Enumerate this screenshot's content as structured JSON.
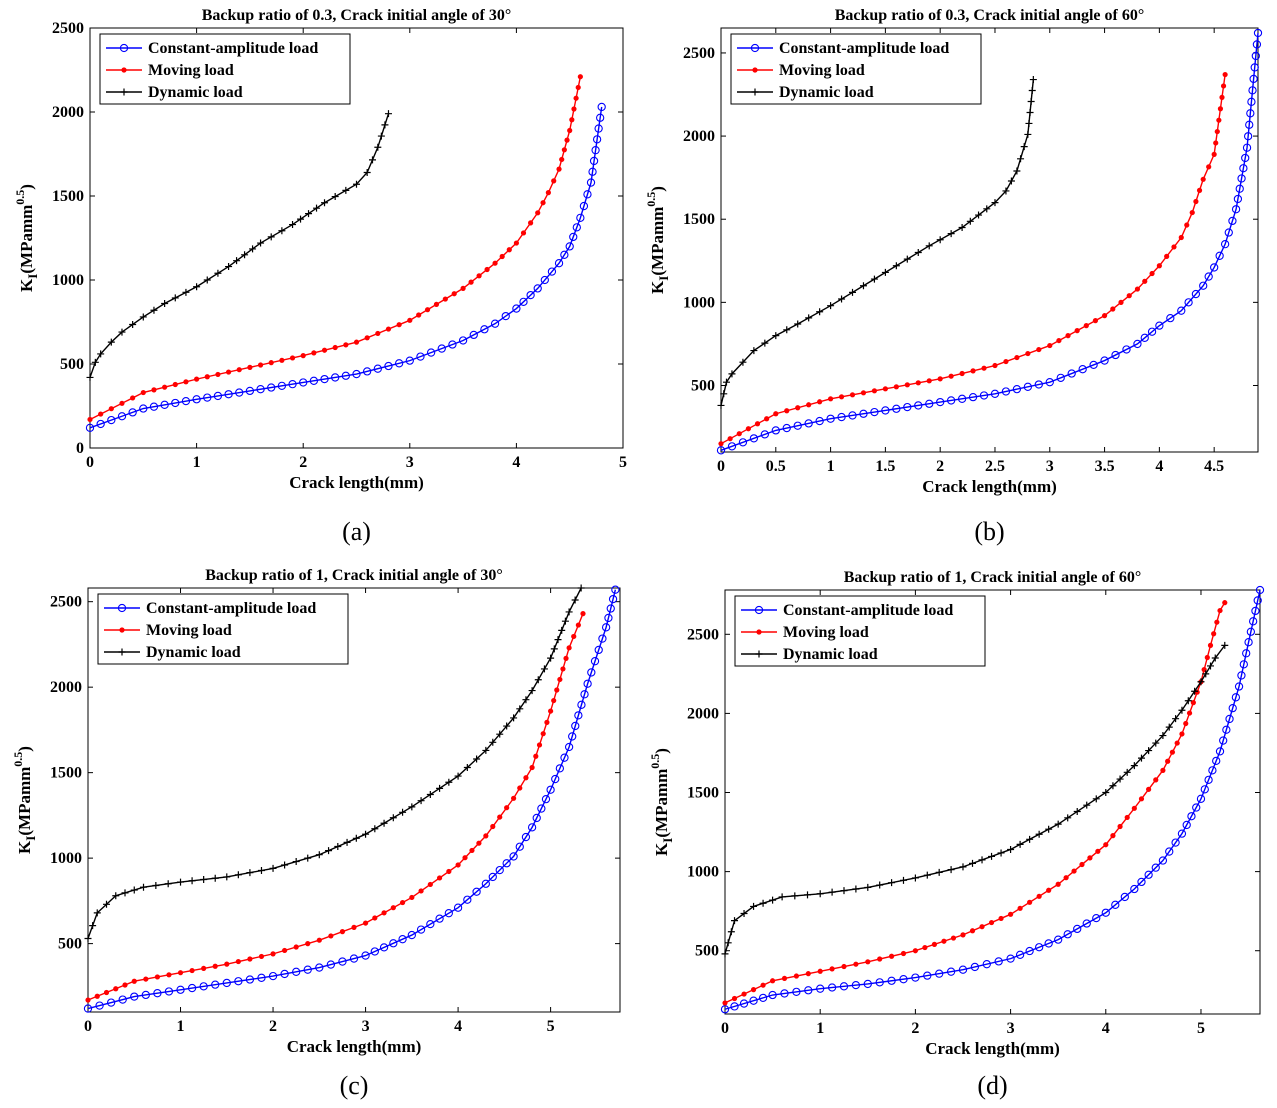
{
  "chart_data": [
    {
      "type": "line",
      "caption": "(a)",
      "title": "Backup ratio of 0.3, Crack initial angle of 30°",
      "xlabel": "Crack length(mm)",
      "ylabel_main": "K",
      "ylabel_sub": "I",
      "ylabel_unit": "(MPamm",
      "ylabel_exp": "0.5",
      "ylabel_close": ")",
      "xlim": [
        0,
        5
      ],
      "ylim": [
        0,
        2500
      ],
      "xticks": [
        0,
        1,
        2,
        3,
        4,
        5
      ],
      "xtick_labels": [
        "0",
        "1",
        "2",
        "3",
        "4",
        "5"
      ],
      "yticks": [
        0,
        500,
        1000,
        1500,
        2000,
        2500
      ],
      "ytick_labels": [
        "0",
        "500",
        "1000",
        "1500",
        "2000",
        "2500"
      ],
      "legend": [
        "Constant-amplitude load",
        "Moving load",
        "Dynamic load"
      ],
      "legend_position": "top-left",
      "series": [
        {
          "name": "Constant-amplitude load",
          "color": "#0000ff",
          "marker": "circle",
          "x": [
            0,
            0.5,
            1,
            1.5,
            2,
            2.5,
            3,
            3.5,
            3.8,
            4,
            4.2,
            4.4,
            4.5,
            4.6,
            4.7,
            4.8
          ],
          "y": [
            120,
            235,
            290,
            340,
            390,
            440,
            520,
            640,
            740,
            830,
            950,
            1100,
            1200,
            1370,
            1580,
            2030
          ]
        },
        {
          "name": "Moving load",
          "color": "#ff0000",
          "marker": "dot",
          "x": [
            0,
            0.5,
            1,
            1.5,
            2,
            2.5,
            3,
            3.5,
            3.8,
            4,
            4.2,
            4.3,
            4.4,
            4.5,
            4.6
          ],
          "y": [
            170,
            330,
            410,
            480,
            550,
            630,
            760,
            950,
            1100,
            1220,
            1400,
            1520,
            1660,
            1890,
            2210
          ]
        },
        {
          "name": "Dynamic load",
          "color": "#000000",
          "marker": "plus",
          "x": [
            0,
            0.05,
            0.1,
            0.2,
            0.3,
            0.5,
            0.7,
            1,
            1.3,
            1.6,
            1.9,
            2.2,
            2.5,
            2.6,
            2.7,
            2.8
          ],
          "y": [
            420,
            510,
            560,
            630,
            690,
            780,
            860,
            960,
            1080,
            1220,
            1330,
            1460,
            1570,
            1640,
            1790,
            1990
          ]
        }
      ]
    },
    {
      "type": "line",
      "caption": "(b)",
      "title": "Backup ratio of 0.3, Crack initial angle of 60°",
      "xlabel": "Crack length(mm)",
      "ylabel_main": "K",
      "ylabel_sub": "I",
      "ylabel_unit": "(MPamm",
      "ylabel_exp": "0.5",
      "ylabel_close": ")",
      "xlim": [
        0,
        4.9
      ],
      "ylim": [
        100,
        2650
      ],
      "xticks": [
        0,
        0.5,
        1,
        1.5,
        2,
        2.5,
        3,
        3.5,
        4,
        4.5
      ],
      "xtick_labels": [
        "0",
        "0.5",
        "1",
        "1.5",
        "2",
        "2.5",
        "3",
        "3.5",
        "4",
        "4.5"
      ],
      "yticks": [
        500,
        1000,
        1500,
        2000,
        2500
      ],
      "ytick_labels": [
        "500",
        "1000",
        "1500",
        "2000",
        "2500"
      ],
      "legend": [
        "Constant-amplitude load",
        "Moving load",
        "Dynamic load"
      ],
      "legend_position": "top-left",
      "series": [
        {
          "name": "Constant-amplitude load",
          "color": "#0000ff",
          "marker": "circle",
          "x": [
            0,
            0.5,
            1,
            1.5,
            2,
            2.5,
            3,
            3.5,
            3.8,
            4,
            4.2,
            4.4,
            4.5,
            4.6,
            4.7,
            4.8,
            4.9
          ],
          "y": [
            110,
            230,
            300,
            350,
            400,
            450,
            520,
            650,
            750,
            860,
            950,
            1100,
            1210,
            1350,
            1560,
            1930,
            2620
          ]
        },
        {
          "name": "Moving load",
          "color": "#ff0000",
          "marker": "dot",
          "x": [
            0,
            0.5,
            1,
            1.5,
            2,
            2.5,
            3,
            3.5,
            3.8,
            4,
            4.2,
            4.3,
            4.4,
            4.5,
            4.6
          ],
          "y": [
            150,
            330,
            420,
            480,
            540,
            620,
            740,
            920,
            1080,
            1220,
            1390,
            1540,
            1740,
            1890,
            2370
          ]
        },
        {
          "name": "Dynamic load",
          "color": "#000000",
          "marker": "plus",
          "x": [
            0,
            0.05,
            0.1,
            0.2,
            0.3,
            0.5,
            0.7,
            1,
            1.3,
            1.6,
            1.9,
            2.2,
            2.5,
            2.6,
            2.7,
            2.8,
            2.85
          ],
          "y": [
            380,
            520,
            570,
            640,
            710,
            800,
            870,
            980,
            1100,
            1220,
            1340,
            1450,
            1600,
            1670,
            1790,
            2010,
            2340
          ]
        }
      ]
    },
    {
      "type": "line",
      "caption": "(c)",
      "title": "Backup ratio of 1, Crack initial angle of 30°",
      "xlabel": "Crack length(mm)",
      "ylabel_main": "K",
      "ylabel_sub": "I",
      "ylabel_unit": "(MPamm",
      "ylabel_exp": "0.5",
      "ylabel_close": ")",
      "xlim": [
        0,
        5.75
      ],
      "ylim": [
        100,
        2580
      ],
      "xticks": [
        0,
        1,
        2,
        3,
        4,
        5
      ],
      "xtick_labels": [
        "0",
        "1",
        "2",
        "3",
        "4",
        "5"
      ],
      "yticks": [
        500,
        1000,
        1500,
        2000,
        2500
      ],
      "ytick_labels": [
        "500",
        "1000",
        "1500",
        "2000",
        "2500"
      ],
      "legend": [
        "Constant-amplitude load",
        "Moving load",
        "Dynamic load"
      ],
      "legend_position": "top-left",
      "series": [
        {
          "name": "Constant-amplitude load",
          "color": "#0000ff",
          "marker": "circle",
          "x": [
            0,
            0.5,
            1,
            1.5,
            2,
            2.5,
            3,
            3.5,
            4,
            4.3,
            4.6,
            4.8,
            5,
            5.2,
            5.4,
            5.6,
            5.7
          ],
          "y": [
            120,
            190,
            230,
            270,
            310,
            360,
            430,
            550,
            710,
            850,
            1010,
            1180,
            1400,
            1650,
            2020,
            2350,
            2570
          ]
        },
        {
          "name": "Moving load",
          "color": "#ff0000",
          "marker": "dot",
          "x": [
            0,
            0.5,
            1,
            1.5,
            2,
            2.5,
            3,
            3.5,
            4,
            4.3,
            4.6,
            4.8,
            5,
            5.2,
            5.35
          ],
          "y": [
            170,
            280,
            330,
            380,
            440,
            520,
            620,
            770,
            960,
            1130,
            1350,
            1530,
            1860,
            2230,
            2430
          ]
        },
        {
          "name": "Dynamic load",
          "color": "#000000",
          "marker": "plus",
          "x": [
            0,
            0.1,
            0.3,
            0.6,
            1,
            1.5,
            2,
            2.5,
            3,
            3.5,
            4,
            4.3,
            4.6,
            4.8,
            5,
            5.2,
            5.33
          ],
          "y": [
            530,
            680,
            780,
            830,
            860,
            890,
            940,
            1020,
            1140,
            1300,
            1480,
            1630,
            1820,
            1980,
            2170,
            2440,
            2580
          ]
        }
      ]
    },
    {
      "type": "line",
      "caption": "(d)",
      "title": "Backup ratio of 1, Crack initial angle of 60°",
      "xlabel": "Crack length(mm)",
      "ylabel_main": "K",
      "ylabel_sub": "I",
      "ylabel_unit": "(MPamm",
      "ylabel_exp": "0.5",
      "ylabel_close": ")",
      "xlim": [
        0,
        5.62
      ],
      "ylim": [
        100,
        2780
      ],
      "xticks": [
        0,
        1,
        2,
        3,
        4,
        5
      ],
      "xtick_labels": [
        "0",
        "1",
        "2",
        "3",
        "4",
        "5"
      ],
      "yticks": [
        500,
        1000,
        1500,
        2000,
        2500
      ],
      "ytick_labels": [
        "500",
        "1000",
        "1500",
        "2000",
        "2500"
      ],
      "legend": [
        "Constant-amplitude load",
        "Moving load",
        "Dynamic load"
      ],
      "legend_position": "top-left",
      "series": [
        {
          "name": "Constant-amplitude load",
          "color": "#0000ff",
          "marker": "circle",
          "x": [
            0,
            0.5,
            1,
            1.5,
            2,
            2.5,
            3,
            3.5,
            4,
            4.3,
            4.6,
            4.8,
            5,
            5.2,
            5.4,
            5.5,
            5.62
          ],
          "y": [
            130,
            220,
            260,
            290,
            330,
            380,
            450,
            570,
            740,
            890,
            1070,
            1240,
            1460,
            1760,
            2170,
            2450,
            2780
          ]
        },
        {
          "name": "Moving load",
          "color": "#ff0000",
          "marker": "dot",
          "x": [
            0,
            0.5,
            1,
            1.5,
            2,
            2.5,
            3,
            3.5,
            4,
            4.3,
            4.6,
            4.8,
            5,
            5.1,
            5.2,
            5.25
          ],
          "y": [
            170,
            310,
            370,
            430,
            500,
            600,
            730,
            920,
            1170,
            1400,
            1640,
            1870,
            2200,
            2430,
            2650,
            2700
          ]
        },
        {
          "name": "Dynamic load",
          "color": "#000000",
          "marker": "plus",
          "x": [
            0,
            0.1,
            0.3,
            0.6,
            1,
            1.5,
            2,
            2.5,
            3,
            3.5,
            4,
            4.3,
            4.6,
            4.8,
            5,
            5.15,
            5.25
          ],
          "y": [
            480,
            690,
            780,
            840,
            860,
            900,
            960,
            1030,
            1140,
            1300,
            1500,
            1670,
            1860,
            2020,
            2200,
            2350,
            2430
          ]
        }
      ]
    }
  ]
}
